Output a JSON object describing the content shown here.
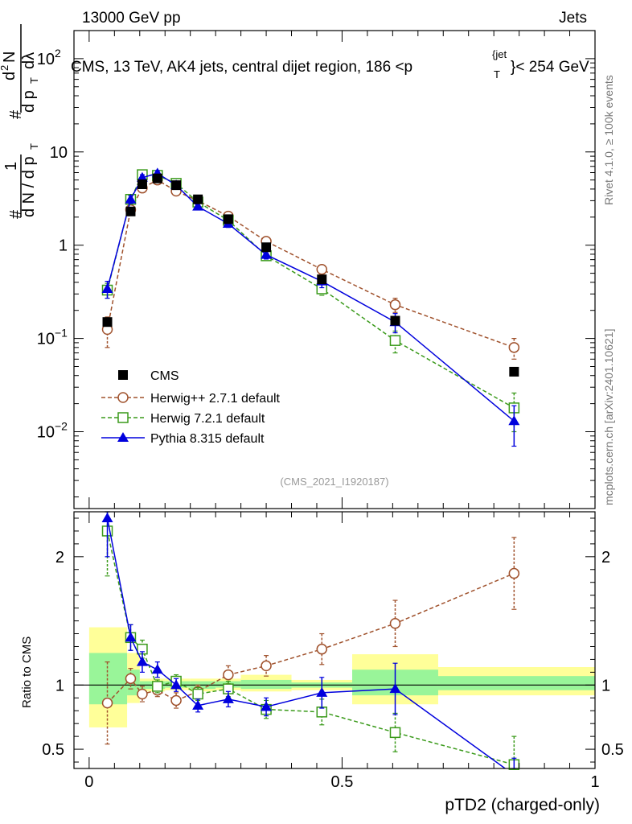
{
  "header": {
    "left": "13000 GeV pp",
    "right": "Jets",
    "title_main": "CMS, 13 TeV, AK4 jets, central dijet region, 186 <p",
    "title_sup": "{jet",
    "title_sub": "T",
    "title_end": "}< 254 GeV"
  },
  "side": {
    "rivet": "Rivet 4.1.0, ≥ 100k events",
    "mcplots": "mcplots.cern.ch [arXiv:2401.10621]"
  },
  "analysis_id": "(CMS_2021_I1920187)",
  "ylabel_main": {
    "hash_left": "#",
    "one": "1",
    "dN": "d N / d p",
    "dN_sub": "T",
    "hash_top": "#",
    "frac_num": "d",
    "frac_num_sup": "2",
    "frac_num_n": "N",
    "frac_den": "d p",
    "frac_den_sub": "T",
    "frac_den_l": "dλ"
  },
  "ylabel_ratio": "Ratio to CMS",
  "xlabel": "pTD2 (charged-only)",
  "colors": {
    "cms": "#000000",
    "herwigpp": "#a0522d",
    "herwig7": "#3a9a1a",
    "pythia": "#0000dd",
    "band_yellow": "#ffff99",
    "band_green": "#99f599"
  },
  "chart_data": [
    {
      "type": "scatter",
      "panel": "main",
      "yscale": "log",
      "ylim": [
        0.0015,
        200
      ],
      "xlim": [
        -0.03,
        1.0
      ],
      "y_ticks": [
        {
          "value": 100,
          "label": "10",
          "sup": "2"
        },
        {
          "value": 10,
          "label": "10",
          "sup": ""
        },
        {
          "value": 1,
          "label": "1",
          "sup": ""
        },
        {
          "value": 0.1,
          "label": "10",
          "sup": "−1"
        },
        {
          "value": 0.01,
          "label": "10",
          "sup": "−2"
        }
      ],
      "bin_edges": [
        0,
        0.075,
        0.1,
        0.125,
        0.15,
        0.2,
        0.25,
        0.3,
        0.4,
        0.52,
        0.69,
        1.0
      ],
      "x": [
        0.036,
        0.082,
        0.105,
        0.135,
        0.172,
        0.215,
        0.275,
        0.35,
        0.46,
        0.605,
        0.84
      ],
      "series": [
        {
          "name": "CMS",
          "key": "cms",
          "marker": "square",
          "style": "none",
          "values": [
            0.15,
            2.3,
            4.5,
            5.2,
            4.4,
            3.1,
            1.9,
            0.95,
            0.43,
            0.155,
            0.044
          ]
        },
        {
          "name": "Herwig++ 2.7.1 default",
          "key": "herwigpp",
          "marker": "circle-open",
          "style": "dashed",
          "values": [
            0.125,
            2.4,
            4.1,
            5.0,
            3.8,
            3.0,
            2.05,
            1.1,
            0.55,
            0.23,
            0.08
          ],
          "errors": [
            0.045,
            0.2,
            0.3,
            0.3,
            0.25,
            0.2,
            0.15,
            0.1,
            0.06,
            0.04,
            0.02
          ]
        },
        {
          "name": "Herwig 7.2.1 default",
          "key": "herwig7",
          "marker": "square-open",
          "style": "dashed",
          "values": [
            0.33,
            3.1,
            5.7,
            5.6,
            4.6,
            2.9,
            1.85,
            0.77,
            0.34,
            0.095,
            0.018
          ],
          "errors": [
            0.06,
            0.3,
            0.4,
            0.4,
            0.3,
            0.2,
            0.15,
            0.08,
            0.05,
            0.025,
            0.008
          ]
        },
        {
          "name": "Pythia 8.315 default",
          "key": "pythia",
          "marker": "triangle",
          "style": "solid",
          "values": [
            0.34,
            3.1,
            5.3,
            5.9,
            4.4,
            2.6,
            1.7,
            0.79,
            0.41,
            0.15,
            0.013
          ],
          "errors": [
            0.07,
            0.3,
            0.4,
            0.4,
            0.3,
            0.2,
            0.15,
            0.08,
            0.06,
            0.035,
            0.006
          ]
        }
      ]
    },
    {
      "type": "scatter",
      "panel": "ratio",
      "ylim": [
        0.35,
        2.35
      ],
      "y_ticks": [
        0.5,
        1,
        2
      ],
      "x_ticks": [
        0,
        0.5,
        1
      ],
      "x_tick_labels": [
        "0",
        "0.5",
        "1"
      ],
      "bands": {
        "yellow": [
          [
            0.67,
            1.45
          ],
          [
            0.86,
            1.25
          ],
          [
            0.95,
            1.05
          ],
          [
            0.95,
            1.05
          ],
          [
            0.96,
            1.05
          ],
          [
            0.95,
            1.05
          ],
          [
            0.96,
            1.05
          ],
          [
            0.95,
            1.08
          ],
          [
            0.96,
            1.04
          ],
          [
            0.85,
            1.24
          ],
          [
            0.92,
            1.14
          ]
        ],
        "green": [
          [
            0.85,
            1.25
          ],
          [
            0.92,
            1.12
          ],
          [
            0.97,
            1.03
          ],
          [
            0.97,
            1.03
          ],
          [
            0.98,
            1.03
          ],
          [
            0.97,
            1.03
          ],
          [
            0.98,
            1.03
          ],
          [
            0.97,
            1.04
          ],
          [
            0.98,
            1.02
          ],
          [
            0.92,
            1.12
          ],
          [
            0.96,
            1.07
          ]
        ]
      },
      "series": [
        {
          "name": "Herwig++ 2.7.1 default",
          "key": "herwigpp",
          "marker": "circle-open",
          "style": "dashed",
          "values": [
            0.86,
            1.05,
            0.93,
            0.96,
            0.88,
            0.95,
            1.08,
            1.15,
            1.28,
            1.48,
            1.87
          ],
          "errors": [
            0.32,
            0.08,
            0.06,
            0.05,
            0.06,
            0.05,
            0.07,
            0.08,
            0.12,
            0.18,
            0.28
          ]
        },
        {
          "name": "Herwig 7.2.1 default",
          "key": "herwig7",
          "marker": "square-open",
          "style": "dashed",
          "values": [
            2.2,
            1.37,
            1.28,
            0.99,
            1.03,
            0.93,
            0.97,
            0.81,
            0.79,
            0.63,
            0.38
          ],
          "errors": [
            0.35,
            0.1,
            0.07,
            0.05,
            0.05,
            0.05,
            0.06,
            0.07,
            0.1,
            0.15,
            0.22
          ]
        },
        {
          "name": "Pythia 8.315 default",
          "key": "pythia",
          "marker": "triangle",
          "style": "solid",
          "values": [
            2.3,
            1.37,
            1.18,
            1.12,
            1.0,
            0.84,
            0.89,
            0.83,
            0.94,
            0.97,
            0.3
          ],
          "errors": [
            0.3,
            0.1,
            0.08,
            0.06,
            0.05,
            0.05,
            0.06,
            0.07,
            0.12,
            0.2,
            0.13
          ]
        }
      ]
    }
  ]
}
